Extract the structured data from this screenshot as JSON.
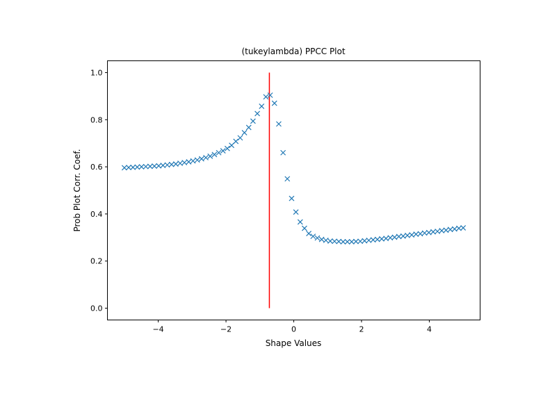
{
  "chart_data": {
    "type": "scatter",
    "title": "(tukeylambda) PPCC Plot",
    "xlabel": "Shape Values",
    "ylabel": "Prob Plot Corr. Coef.",
    "xlim": [
      -5.5,
      5.5
    ],
    "ylim": [
      -0.05,
      1.05
    ],
    "xticks": [
      -4,
      -2,
      0,
      2,
      4
    ],
    "xtick_labels": [
      "−4",
      "−2",
      "0",
      "2",
      "4"
    ],
    "yticks": [
      0.0,
      0.2,
      0.4,
      0.6,
      0.8,
      1.0
    ],
    "ytick_labels": [
      "0.0",
      "0.2",
      "0.4",
      "0.6",
      "0.8",
      "1.0"
    ],
    "grid": false,
    "marker": "x",
    "series_color": "#1f77b4",
    "x": [
      -5.0,
      -4.873,
      -4.747,
      -4.62,
      -4.494,
      -4.367,
      -4.241,
      -4.114,
      -3.987,
      -3.861,
      -3.734,
      -3.608,
      -3.481,
      -3.354,
      -3.228,
      -3.101,
      -2.975,
      -2.848,
      -2.722,
      -2.595,
      -2.468,
      -2.342,
      -2.215,
      -2.089,
      -1.962,
      -1.835,
      -1.709,
      -1.582,
      -1.456,
      -1.329,
      -1.203,
      -1.076,
      -0.949,
      -0.823,
      -0.696,
      -0.57,
      -0.443,
      -0.316,
      -0.19,
      -0.063,
      0.063,
      0.19,
      0.316,
      0.443,
      0.57,
      0.696,
      0.823,
      0.949,
      1.076,
      1.203,
      1.329,
      1.456,
      1.582,
      1.709,
      1.835,
      1.962,
      2.089,
      2.215,
      2.342,
      2.468,
      2.595,
      2.722,
      2.848,
      2.975,
      3.101,
      3.228,
      3.354,
      3.481,
      3.608,
      3.734,
      3.861,
      3.987,
      4.114,
      4.241,
      4.367,
      4.494,
      4.62,
      4.747,
      4.873,
      5.0
    ],
    "y": [
      0.596,
      0.597,
      0.598,
      0.599,
      0.6,
      0.601,
      0.602,
      0.603,
      0.604,
      0.606,
      0.608,
      0.61,
      0.612,
      0.615,
      0.618,
      0.621,
      0.625,
      0.629,
      0.634,
      0.639,
      0.645,
      0.652,
      0.66,
      0.668,
      0.678,
      0.691,
      0.708,
      0.723,
      0.745,
      0.767,
      0.794,
      0.826,
      0.857,
      0.897,
      0.904,
      0.87,
      0.782,
      0.66,
      0.549,
      0.466,
      0.408,
      0.366,
      0.339,
      0.317,
      0.305,
      0.298,
      0.292,
      0.288,
      0.285,
      0.284,
      0.283,
      0.282,
      0.282,
      0.282,
      0.283,
      0.284,
      0.286,
      0.288,
      0.29,
      0.292,
      0.294,
      0.296,
      0.299,
      0.301,
      0.304,
      0.306,
      0.309,
      0.311,
      0.314,
      0.316,
      0.319,
      0.321,
      0.324,
      0.326,
      0.329,
      0.331,
      0.334,
      0.336,
      0.339,
      0.341
    ],
    "vline": {
      "x": -0.72,
      "ymin": 0,
      "ymax": 1,
      "color": "#ff0000"
    }
  }
}
